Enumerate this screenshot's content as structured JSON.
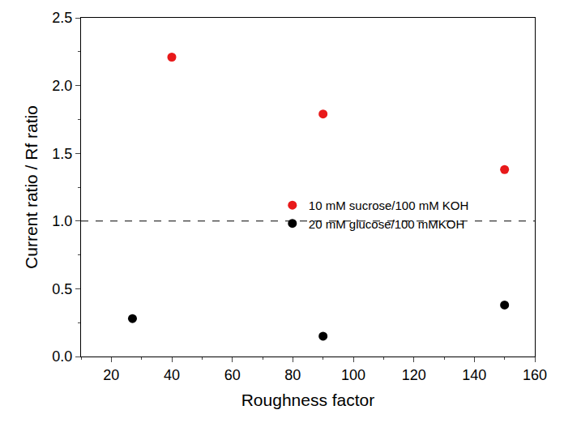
{
  "chart_data": {
    "type": "scatter",
    "x_label": "Roughness factor",
    "y_label": "Current ratio / Rf ratio",
    "series": [
      {
        "name": "10 mM sucrose/100 mM KOH",
        "color": "#e8191a",
        "marker": "circle",
        "x": [
          40,
          90,
          150
        ],
        "values": [
          2.21,
          1.79,
          1.38
        ]
      },
      {
        "name": "20 mM glucose/100 mMKOH",
        "color": "#000000",
        "marker": "circle",
        "x": [
          27,
          90,
          150
        ],
        "values": [
          0.28,
          0.15,
          0.38
        ]
      }
    ],
    "reference_line": {
      "y": 1,
      "line_style": "dashed"
    },
    "xlim": [
      10,
      160
    ],
    "xticks": [
      20,
      40,
      60,
      80,
      100,
      120,
      140,
      160
    ],
    "ylim": [
      0,
      2.5
    ],
    "yticks": [
      {
        "value": 0,
        "label": "0.0"
      },
      0.5,
      {
        "value": 1,
        "label": "1.0"
      },
      1.5,
      {
        "value": 2,
        "label": "2.0"
      },
      2.5
    ],
    "grid": false,
    "legend": "right"
  }
}
